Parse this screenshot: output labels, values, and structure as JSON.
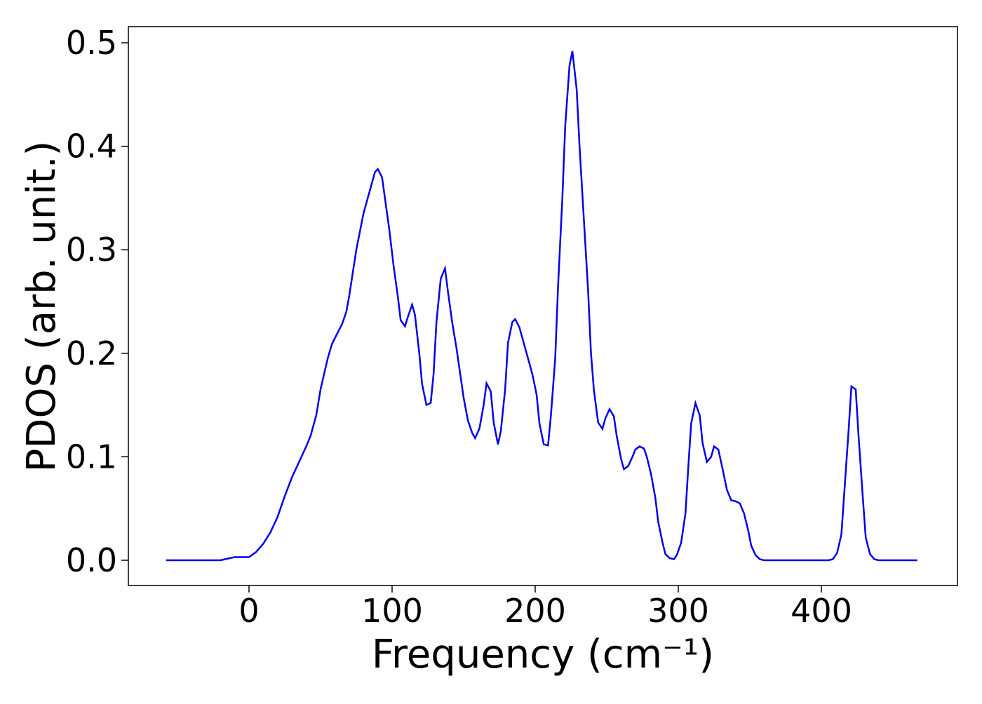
{
  "chart_data": {
    "type": "line",
    "xlabel": "Frequency (cm⁻¹)",
    "ylabel": "PDOS (arb. unit.)",
    "x": [
      -58,
      -20,
      -10,
      0,
      5,
      10,
      15,
      20,
      25,
      30,
      35,
      40,
      43,
      47,
      50,
      55,
      58,
      62,
      65,
      68,
      70,
      75,
      80,
      83,
      86,
      88,
      90,
      93,
      95,
      98,
      101,
      104,
      106,
      109,
      111,
      114,
      116,
      119,
      121,
      124,
      127,
      129,
      131,
      134,
      137,
      139,
      142,
      145,
      150,
      153,
      156,
      158,
      161,
      164,
      166,
      169,
      171,
      174,
      176,
      179,
      181,
      184,
      186,
      189,
      192,
      195,
      198,
      201,
      203,
      206,
      209,
      211,
      214,
      216,
      219,
      221,
      224,
      226,
      229,
      231,
      234,
      237,
      239,
      241,
      244,
      247,
      249,
      252,
      255,
      257,
      260,
      262,
      265,
      268,
      270,
      273,
      276,
      278,
      281,
      284,
      286,
      289,
      291,
      294,
      297,
      299,
      302,
      305,
      307,
      309,
      312,
      315,
      317,
      320,
      323,
      325,
      328,
      331,
      334,
      337,
      340,
      343,
      346,
      349,
      351,
      354,
      357,
      360,
      405,
      408,
      411,
      414,
      416,
      419,
      421,
      424,
      426,
      429,
      431,
      434,
      437,
      440,
      467
    ],
    "series": [
      {
        "color": "#0000ee",
        "values": [
          0,
          0,
          0.003,
          0.003,
          0.008,
          0.016,
          0.027,
          0.042,
          0.062,
          0.08,
          0.095,
          0.11,
          0.12,
          0.14,
          0.165,
          0.195,
          0.209,
          0.22,
          0.228,
          0.24,
          0.255,
          0.3,
          0.335,
          0.35,
          0.365,
          0.375,
          0.378,
          0.37,
          0.35,
          0.32,
          0.285,
          0.255,
          0.232,
          0.226,
          0.235,
          0.247,
          0.237,
          0.2,
          0.17,
          0.15,
          0.152,
          0.18,
          0.23,
          0.272,
          0.282,
          0.26,
          0.23,
          0.205,
          0.157,
          0.135,
          0.123,
          0.118,
          0.127,
          0.15,
          0.171,
          0.163,
          0.133,
          0.112,
          0.125,
          0.165,
          0.21,
          0.23,
          0.233,
          0.225,
          0.21,
          0.195,
          0.18,
          0.16,
          0.132,
          0.112,
          0.111,
          0.14,
          0.195,
          0.265,
          0.35,
          0.42,
          0.478,
          0.492,
          0.455,
          0.4,
          0.33,
          0.26,
          0.2,
          0.165,
          0.133,
          0.127,
          0.137,
          0.146,
          0.139,
          0.12,
          0.098,
          0.088,
          0.091,
          0.1,
          0.107,
          0.11,
          0.108,
          0.1,
          0.083,
          0.06,
          0.037,
          0.017,
          0.006,
          0.002,
          0.001,
          0.005,
          0.017,
          0.045,
          0.09,
          0.132,
          0.152,
          0.14,
          0.113,
          0.095,
          0.1,
          0.11,
          0.107,
          0.088,
          0.068,
          0.058,
          0.057,
          0.055,
          0.045,
          0.028,
          0.014,
          0.005,
          0.001,
          0,
          0,
          0.001,
          0.007,
          0.025,
          0.065,
          0.125,
          0.168,
          0.165,
          0.12,
          0.06,
          0.022,
          0.006,
          0.001,
          0,
          0
        ]
      }
    ],
    "xlim": [
      -84.3,
      495.1
    ],
    "xticks": [
      0,
      100,
      200,
      300,
      400
    ],
    "ylim": [
      -0.0244,
      0.5156
    ],
    "yticks": [
      {
        "value": 0,
        "label": "0.0"
      },
      {
        "value": 0.1,
        "label": "0.1"
      },
      {
        "value": 0.2,
        "label": "0.2"
      },
      {
        "value": 0.3,
        "label": "0.3"
      },
      {
        "value": 0.4,
        "label": "0.4"
      },
      {
        "value": 0.5,
        "label": "0.5"
      }
    ]
  }
}
